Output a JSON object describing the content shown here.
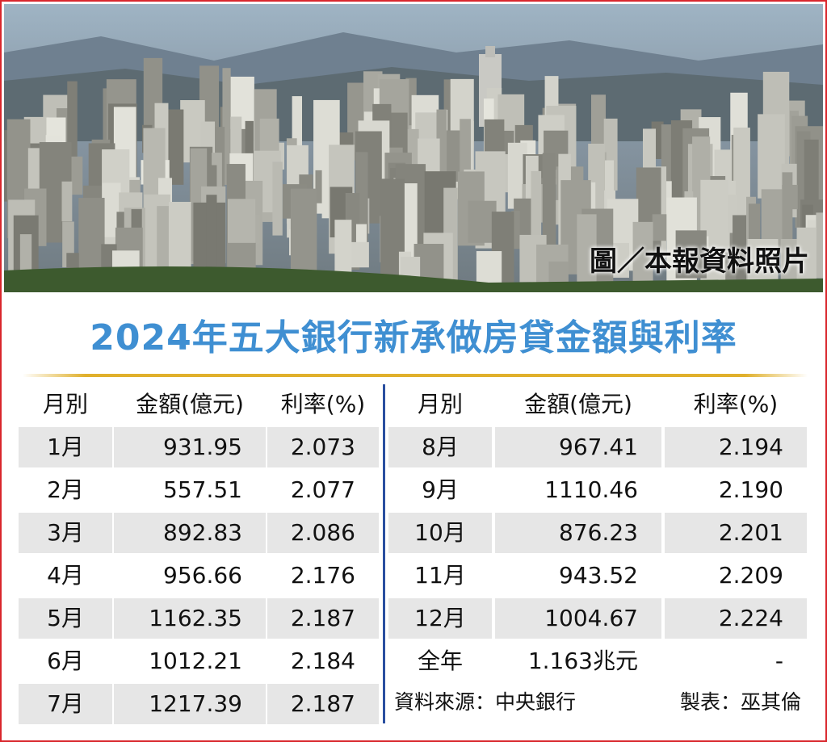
{
  "photo": {
    "credit": "圖／本報資料照片"
  },
  "title": "2024年五大銀行新承做房貸金額與利率",
  "table": {
    "headers": [
      "月別",
      "金額(億元)",
      "利率(%)"
    ],
    "left_rows": [
      [
        "1月",
        "931.95",
        "2.073"
      ],
      [
        "2月",
        "557.51",
        "2.077"
      ],
      [
        "3月",
        "892.83",
        "2.086"
      ],
      [
        "4月",
        "956.66",
        "2.176"
      ],
      [
        "5月",
        "1162.35",
        "2.187"
      ],
      [
        "6月",
        "1012.21",
        "2.184"
      ],
      [
        "7月",
        "1217.39",
        "2.187"
      ]
    ],
    "right_rows": [
      [
        "8月",
        "967.41",
        "2.194"
      ],
      [
        "9月",
        "1110.46",
        "2.190"
      ],
      [
        "10月",
        "876.23",
        "2.201"
      ],
      [
        "11月",
        "943.52",
        "2.209"
      ],
      [
        "12月",
        "1004.67",
        "2.224"
      ],
      [
        "全年",
        "1.163兆元",
        "-"
      ]
    ]
  },
  "source": "資料來源：中央銀行",
  "author": "製表：巫其倫"
}
